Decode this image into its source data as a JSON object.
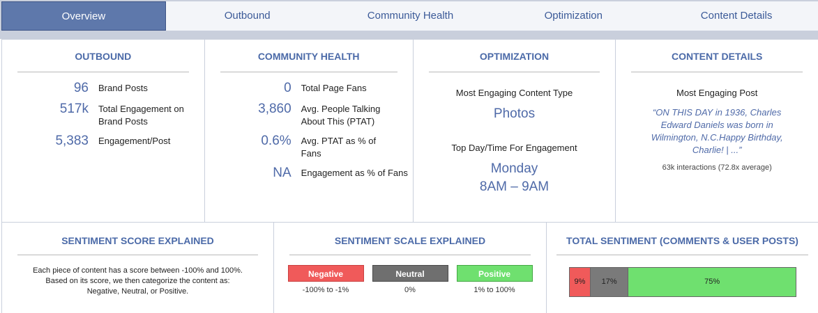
{
  "tabs": [
    {
      "label": "Overview",
      "active": true
    },
    {
      "label": "Outbound",
      "active": false
    },
    {
      "label": "Community Health",
      "active": false
    },
    {
      "label": "Optimization",
      "active": false
    },
    {
      "label": "Content Details",
      "active": false
    }
  ],
  "outbound": {
    "title": "OUTBOUND",
    "stats": [
      {
        "value": "96",
        "label": "Brand Posts"
      },
      {
        "value": "517k",
        "label": "Total Engagement on Brand Posts"
      },
      {
        "value": "5,383",
        "label": "Engagement/Post"
      }
    ]
  },
  "community": {
    "title": "COMMUNITY HEALTH",
    "stats": [
      {
        "value": "0",
        "label": "Total Page Fans"
      },
      {
        "value": "3,860",
        "label": "Avg. People Talking About This (PTAT)"
      },
      {
        "value": "0.6%",
        "label": "Avg. PTAT as % of Fans"
      },
      {
        "value": "NA",
        "label": "Engagement as % of Fans"
      }
    ]
  },
  "optimization": {
    "title": "OPTIMIZATION",
    "content_type_label": "Most Engaging Content Type",
    "content_type_value": "Photos",
    "daytime_label": "Top Day/Time For Engagement",
    "day_value": "Monday",
    "time_value": "8AM – 9AM"
  },
  "content_details": {
    "title": "CONTENT DETAILS",
    "post_label": "Most Engaging Post",
    "post_quote": "“ON THIS DAY in 1936, Charles Edward Daniels was born in Wilmington, N.C.Happy Birthday, Charlie! | ...”",
    "post_meta": "63k interactions (72.8x average)"
  },
  "sentiment_score": {
    "title": "SENTIMENT SCORE EXPLAINED",
    "line1": "Each piece of content has a score between -100% and 100%.",
    "line2": "Based on its score, we then categorize the content as:",
    "line3": "Negative, Neutral, or Positive."
  },
  "sentiment_scale": {
    "title": "SENTIMENT SCALE EXPLAINED",
    "items": [
      {
        "label": "Negative",
        "range": "-100% to -1%",
        "color": "#f05a5a"
      },
      {
        "label": "Neutral",
        "range": "0%",
        "color": "#6f6f6f"
      },
      {
        "label": "Positive",
        "range": "1% to 100%",
        "color": "#6fe06f"
      }
    ]
  },
  "total_sentiment": {
    "title": "TOTAL SENTIMENT (COMMENTS & USER POSTS)",
    "segments": [
      {
        "label": "9%",
        "value": 9,
        "color": "#f05a5a"
      },
      {
        "label": "17%",
        "value": 17,
        "color": "#7a7a7a"
      },
      {
        "label": "75%",
        "value": 75,
        "color": "#6fe06f"
      }
    ]
  }
}
